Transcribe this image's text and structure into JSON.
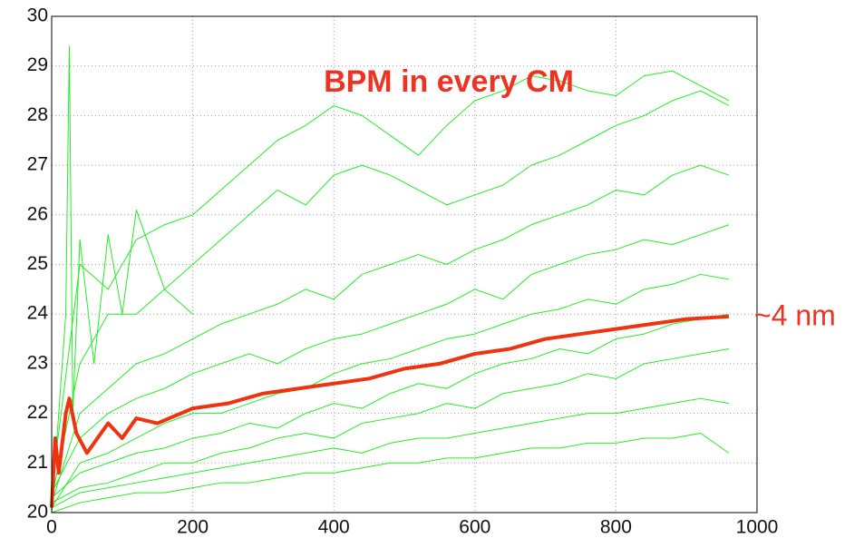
{
  "chart_data": {
    "type": "line",
    "annotations": [
      "BPM in every CM",
      "~4 nm"
    ],
    "x": [
      0,
      40,
      80,
      120,
      160,
      200,
      240,
      280,
      320,
      360,
      400,
      440,
      480,
      520,
      560,
      600,
      640,
      680,
      720,
      760,
      800,
      840,
      880,
      920,
      960
    ],
    "series": [
      {
        "color": "#22ee22",
        "values": [
          20.5,
          25,
          24.5,
          25.5,
          25.8,
          26,
          26.5,
          27,
          27.5,
          27.8,
          28.2,
          28,
          27.6,
          27.2,
          27.8,
          28.3,
          28.5,
          28.8,
          28.7,
          28.5,
          28.4,
          28.8,
          28.9,
          28.6,
          28.3
        ]
      },
      {
        "color": "#22ee22",
        "values": [
          20.3,
          23,
          24,
          24,
          24.5,
          25,
          25.5,
          26,
          26.5,
          26.2,
          26.8,
          27,
          26.8,
          26.5,
          26.2,
          26.4,
          26.6,
          27,
          27.2,
          27.5,
          27.8,
          28,
          28.3,
          28.5,
          28.2
        ]
      },
      {
        "color": "#22ee22",
        "values": [
          20.2,
          22,
          22.5,
          23,
          23.2,
          23.5,
          23.8,
          24,
          24.2,
          24.5,
          24.3,
          24.8,
          25,
          25.2,
          25,
          25.3,
          25.5,
          25.8,
          26,
          26.2,
          26.5,
          26.4,
          26.8,
          27,
          26.8
        ]
      },
      {
        "color": "#22ee22",
        "values": [
          20.4,
          21.5,
          22,
          22.3,
          22.5,
          22.8,
          23,
          23.2,
          23,
          23.3,
          23.5,
          23.6,
          23.8,
          24,
          24.2,
          24.5,
          24.3,
          24.8,
          25,
          25.2,
          25.3,
          25.5,
          25.4,
          25.6,
          25.8
        ]
      },
      {
        "color": "#22ee22",
        "values": [
          20.1,
          21,
          21.2,
          21.5,
          21.8,
          22,
          22,
          22.2,
          22.4,
          22.5,
          22.8,
          23,
          23.1,
          23.3,
          23.5,
          23.6,
          23.8,
          24,
          24.1,
          24.3,
          24.2,
          24.5,
          24.6,
          24.8,
          24.7
        ]
      },
      {
        "color": "#22ee22",
        "values": [
          20.3,
          20.8,
          21,
          21.2,
          21.3,
          21.5,
          21.6,
          21.8,
          21.7,
          22,
          22.2,
          22.1,
          22.4,
          22.6,
          22.5,
          22.8,
          23,
          23.1,
          23.3,
          23.2,
          23.5,
          23.6,
          23.8,
          23.9,
          24
        ]
      },
      {
        "color": "#22ee22",
        "values": [
          20.2,
          20.5,
          20.6,
          20.8,
          21,
          21,
          21.2,
          21.3,
          21.5,
          21.6,
          21.5,
          21.8,
          21.9,
          22,
          22.2,
          22.1,
          22.4,
          22.5,
          22.6,
          22.8,
          22.7,
          23,
          23.1,
          23.2,
          23.3
        ]
      },
      {
        "color": "#22ee22",
        "values": [
          20.1,
          20.4,
          20.5,
          20.6,
          20.7,
          20.8,
          20.9,
          21,
          21.1,
          21.2,
          21.3,
          21.2,
          21.4,
          21.5,
          21.5,
          21.6,
          21.7,
          21.8,
          21.9,
          22,
          22,
          22.1,
          22.2,
          22.3,
          22.2
        ]
      },
      {
        "color": "#22ee22",
        "values": [
          20,
          20.2,
          20.3,
          20.4,
          20.4,
          20.5,
          20.6,
          20.6,
          20.7,
          20.8,
          20.8,
          20.9,
          21,
          21,
          21.1,
          21.1,
          21.2,
          21.3,
          21.3,
          21.4,
          21.4,
          21.5,
          21.5,
          21.6,
          21.2
        ]
      },
      {
        "color": "#22ee22",
        "x": [
          0,
          10,
          20,
          25,
          30,
          40,
          60,
          80,
          100,
          120,
          160,
          200
        ],
        "values": [
          20,
          22,
          24,
          29.4,
          22,
          25.5,
          23,
          25.6,
          24,
          26.1,
          24.5,
          24
        ]
      },
      {
        "color": "#ee3311",
        "width": 4,
        "x": [
          0,
          5,
          10,
          20,
          25,
          35,
          50,
          65,
          80,
          100,
          120,
          150,
          200,
          250,
          300,
          350,
          400,
          450,
          500,
          550,
          600,
          650,
          700,
          750,
          800,
          850,
          900,
          960
        ],
        "values": [
          20.1,
          21.5,
          20.8,
          22.0,
          22.3,
          21.6,
          21.2,
          21.5,
          21.8,
          21.5,
          21.9,
          21.8,
          22.1,
          22.2,
          22.4,
          22.5,
          22.6,
          22.7,
          22.9,
          23.0,
          23.2,
          23.3,
          23.5,
          23.6,
          23.7,
          23.8,
          23.9,
          23.95
        ]
      }
    ],
    "xlim": [
      0,
      1000
    ],
    "xticks": [
      0,
      200,
      400,
      600,
      800,
      1000
    ],
    "ylim": [
      20,
      30
    ],
    "yticks": [
      20,
      21,
      22,
      23,
      24,
      25,
      26,
      27,
      28,
      29,
      30
    ],
    "grid": true
  }
}
